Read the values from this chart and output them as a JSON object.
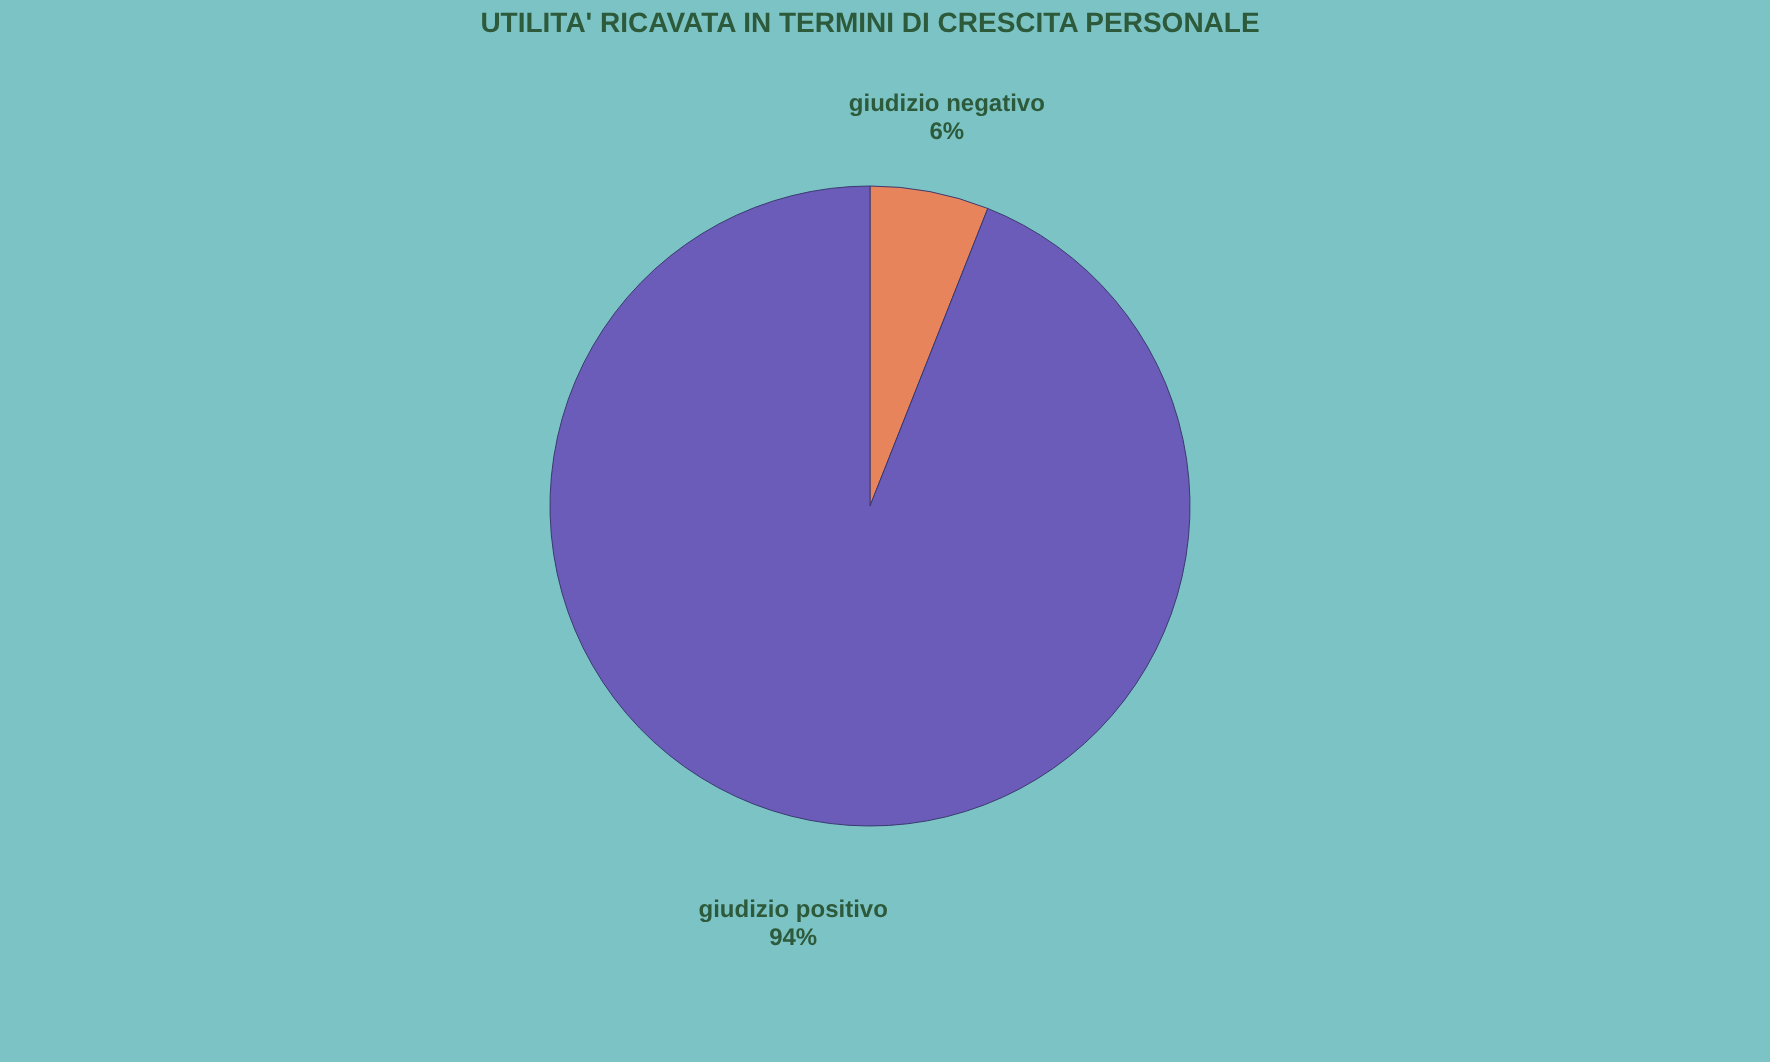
{
  "chart_data": {
    "type": "pie",
    "title": "UTILITA' RICAVATA IN TERMINI DI CRESCITA PERSONALE",
    "categories": [
      "giudizio negativo",
      "giudizio positivo"
    ],
    "values": [
      6,
      94
    ],
    "value_labels": [
      "6%",
      "94%"
    ],
    "colors": [
      "#e8845c",
      "#6a5cb8"
    ],
    "legend": false
  }
}
